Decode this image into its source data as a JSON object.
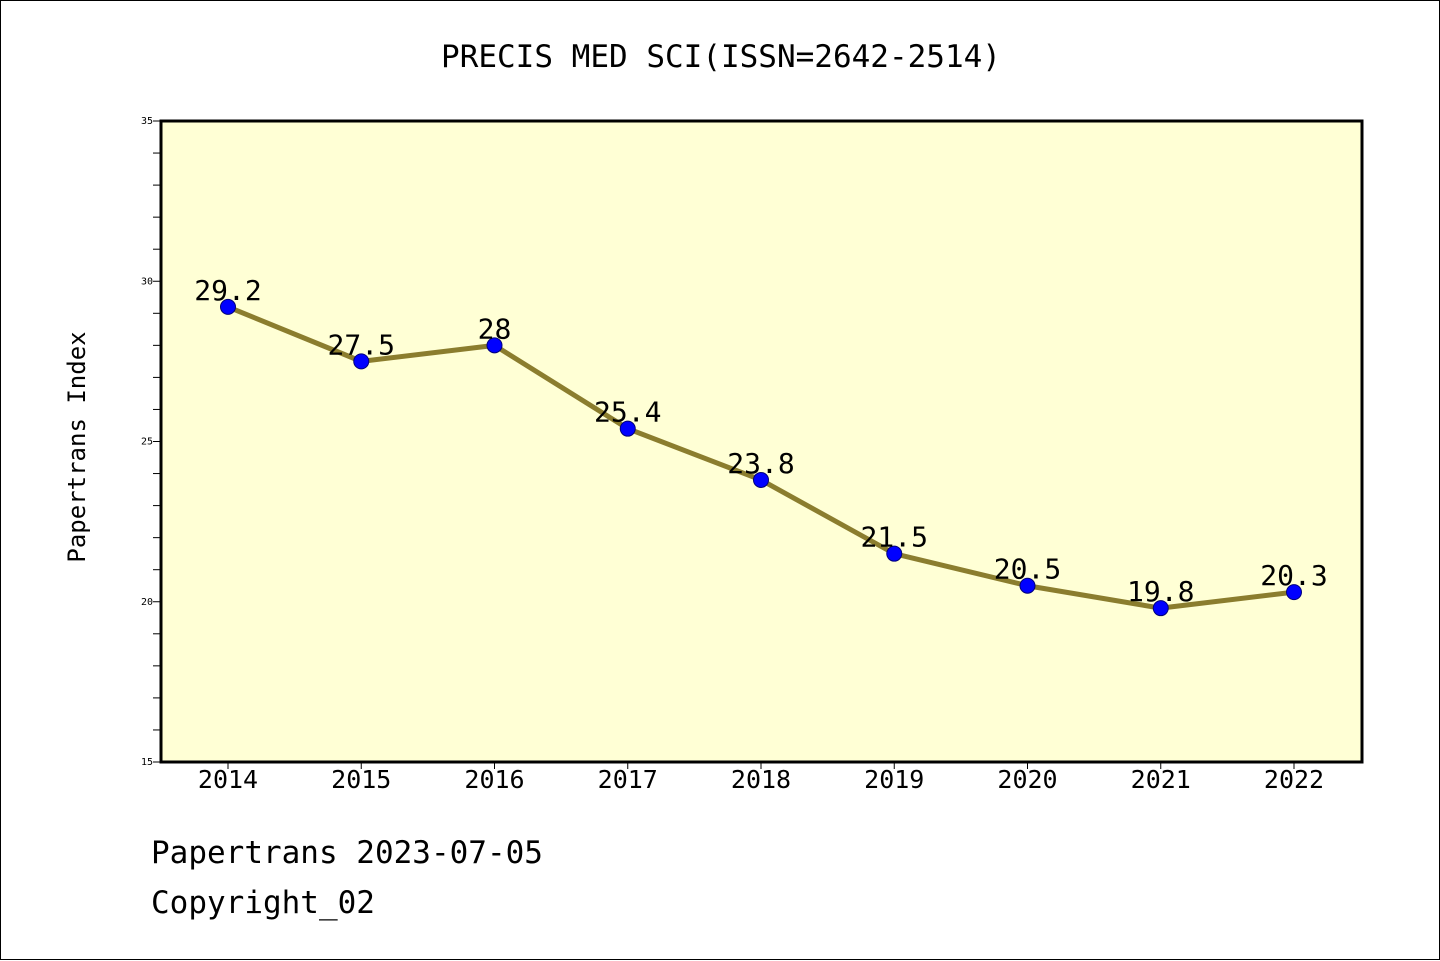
{
  "chart_data": {
    "type": "line",
    "title": "PRECIS MED SCI(ISSN=2642-2514)",
    "xlabel": "",
    "ylabel": "Papertrans Index",
    "categories": [
      "2014",
      "2015",
      "2016",
      "2017",
      "2018",
      "2019",
      "2020",
      "2021",
      "2022"
    ],
    "values": [
      29.2,
      27.5,
      28,
      25.4,
      23.8,
      21.5,
      20.5,
      19.8,
      20.3
    ],
    "data_labels": [
      "29.2",
      "27.5",
      "28",
      "25.4",
      "23.8",
      "21.5",
      "20.5",
      "19.8",
      "20.3"
    ],
    "ylim": [
      15,
      35
    ],
    "yticks": [
      15,
      20,
      25,
      30,
      35
    ],
    "grid": false,
    "colors": {
      "plot_background": "#FFFFD5",
      "line": "#8B7D2E",
      "marker": "#0000FF"
    }
  },
  "footer": {
    "line1": "Papertrans 2023-07-05",
    "line2": "Copyright_02"
  }
}
